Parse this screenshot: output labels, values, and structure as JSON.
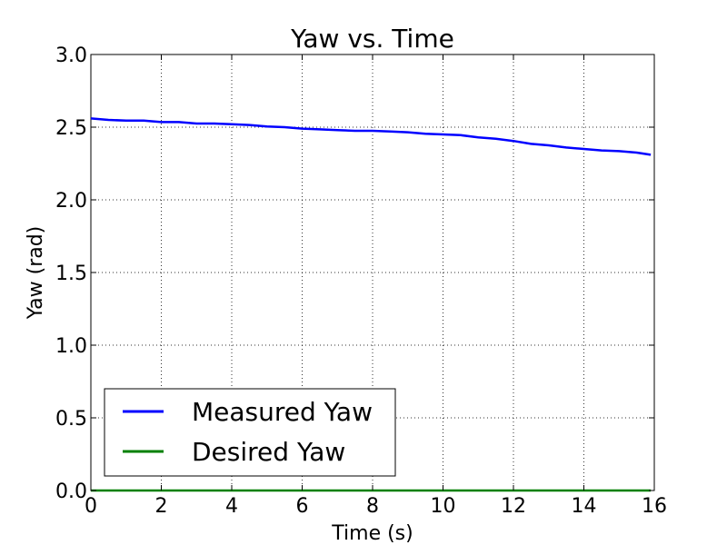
{
  "chart_data": {
    "type": "line",
    "title": "Yaw vs. Time",
    "xlabel": "Time (s)",
    "ylabel": "Yaw (rad)",
    "xlim": [
      0,
      16
    ],
    "ylim": [
      0.0,
      3.0
    ],
    "x_ticks": [
      0,
      2,
      4,
      6,
      8,
      10,
      12,
      14,
      16
    ],
    "x_tick_labels": [
      "0",
      "2",
      "4",
      "6",
      "8",
      "10",
      "12",
      "14",
      "16"
    ],
    "y_ticks": [
      0.0,
      0.5,
      1.0,
      1.5,
      2.0,
      2.5,
      3.0
    ],
    "y_tick_labels": [
      "0.0",
      "0.5",
      "1.0",
      "1.5",
      "2.0",
      "2.5",
      "3.0"
    ],
    "grid": true,
    "legend_position": "bottom-left",
    "series": [
      {
        "name": "Measured Yaw",
        "color": "#0000ff",
        "x": [
          0.0,
          0.5,
          1.0,
          1.5,
          2.0,
          2.5,
          3.0,
          3.5,
          4.0,
          4.5,
          5.0,
          5.5,
          6.0,
          6.5,
          7.0,
          7.5,
          8.0,
          8.5,
          9.0,
          9.5,
          10.0,
          10.5,
          11.0,
          11.5,
          12.0,
          12.5,
          13.0,
          13.5,
          14.0,
          14.5,
          15.0,
          15.5,
          15.9
        ],
        "y": [
          2.56,
          2.55,
          2.545,
          2.545,
          2.535,
          2.535,
          2.525,
          2.525,
          2.52,
          2.515,
          2.505,
          2.5,
          2.49,
          2.485,
          2.48,
          2.475,
          2.475,
          2.47,
          2.465,
          2.455,
          2.45,
          2.445,
          2.43,
          2.42,
          2.405,
          2.385,
          2.375,
          2.36,
          2.35,
          2.34,
          2.335,
          2.325,
          2.31
        ]
      },
      {
        "name": "Desired Yaw",
        "color": "#008000",
        "x": [
          0.0,
          15.9
        ],
        "y": [
          0.0,
          0.0
        ]
      }
    ]
  }
}
